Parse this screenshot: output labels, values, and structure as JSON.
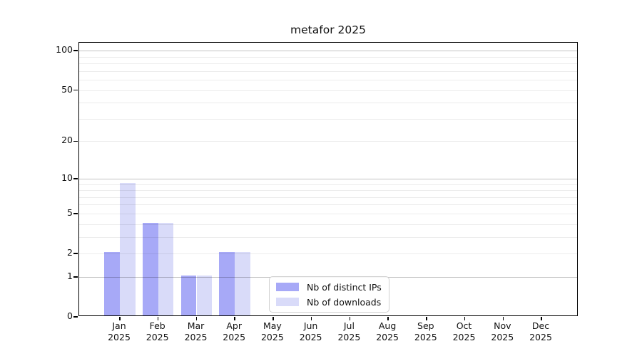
{
  "figure": {
    "background": "#ffffff"
  },
  "chart_data": {
    "type": "bar",
    "title": "metafor 2025",
    "categories": [
      "Jan",
      "Feb",
      "Mar",
      "Apr",
      "May",
      "Jun",
      "Jul",
      "Aug",
      "Sep",
      "Oct",
      "Nov",
      "Dec"
    ],
    "category_year": "2025",
    "series": [
      {
        "name": "Nb of distinct IPs",
        "color": "#a7a9f7",
        "values": [
          2,
          4,
          1,
          2,
          0,
          0,
          0,
          0,
          0,
          0,
          0,
          0
        ]
      },
      {
        "name": "Nb of downloads",
        "color": "#d9dbf9",
        "values": [
          9,
          4,
          1,
          2,
          0,
          0,
          0,
          0,
          0,
          0,
          0,
          0
        ]
      }
    ],
    "xlabel": "",
    "ylabel": "",
    "y_scale": "log1p",
    "ylim": [
      0,
      115
    ],
    "y_ticks": [
      0,
      1,
      2,
      5,
      10,
      20,
      50,
      100
    ],
    "y_gridlines_major": [
      1,
      10,
      100
    ],
    "y_gridlines_minor": [
      2,
      3,
      4,
      5,
      6,
      7,
      8,
      9,
      20,
      30,
      40,
      50,
      60,
      70,
      80,
      90
    ],
    "grid": true,
    "legend_position": "lower center-right inside plot"
  }
}
